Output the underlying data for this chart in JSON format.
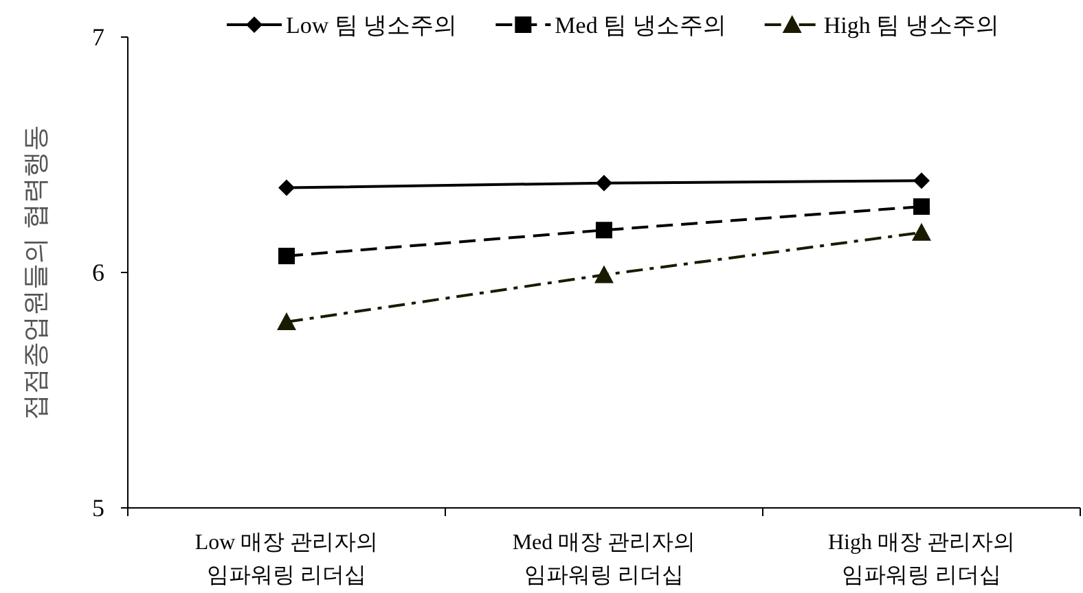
{
  "chart_data": {
    "type": "line",
    "ylabel": "접점종업원들의 협력행동",
    "categories": [
      "Low 매장 관리자의\n임파워링 리더십",
      "Med 매장 관리자의\n임파워링 리더십",
      "High  매장 관리자의\n임파워링 리더십"
    ],
    "series": [
      {
        "name": "Low 팀 냉소주의",
        "color": "#000000",
        "marker": "diamond",
        "line_style": "solid",
        "values": [
          6.36,
          6.38,
          6.39
        ]
      },
      {
        "name": "Med 팀 냉소주의",
        "color": "#000000",
        "marker": "square",
        "line_style": "dashed",
        "values": [
          6.07,
          6.18,
          6.28
        ]
      },
      {
        "name": "High  팀 냉소주의",
        "color": "#1a1a00",
        "marker": "triangle",
        "line_style": "dashdot",
        "values": [
          5.79,
          5.99,
          6.17
        ]
      }
    ],
    "ylim": [
      5,
      7
    ],
    "yticks": [
      5,
      6,
      7
    ],
    "grid": false,
    "legend": "top"
  }
}
